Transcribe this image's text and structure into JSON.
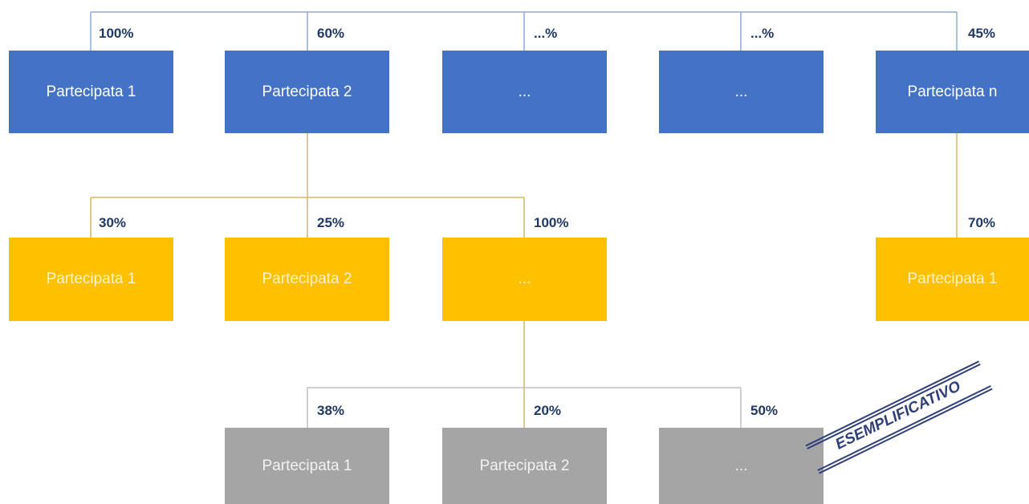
{
  "colors": {
    "level1": "#4472c4",
    "level2": "#ffc000",
    "level3": "#a5a5a5",
    "level1_line": "#8eaadb",
    "level2_line": "#d6b46a"
  },
  "level1": [
    {
      "label": "Partecipata 1",
      "pct": "100%"
    },
    {
      "label": "Partecipata 2",
      "pct": "60%"
    },
    {
      "label": "...",
      "pct": "...%"
    },
    {
      "label": "...",
      "pct": "...%"
    },
    {
      "label": "Partecipata n",
      "pct": "45%"
    }
  ],
  "level2": [
    {
      "label": "Partecipata 1",
      "pct": "30%"
    },
    {
      "label": "Partecipata 2",
      "pct": "25%"
    },
    {
      "label": "...",
      "pct": "100%"
    },
    {
      "label": "Partecipata 1",
      "pct": "70%"
    }
  ],
  "level3": [
    {
      "label": "Partecipata 1",
      "pct": "38%"
    },
    {
      "label": "Partecipata 2",
      "pct": "20%"
    },
    {
      "label": "...",
      "pct": "50%"
    }
  ],
  "stamp": "ESEMPLIFICATIVO"
}
